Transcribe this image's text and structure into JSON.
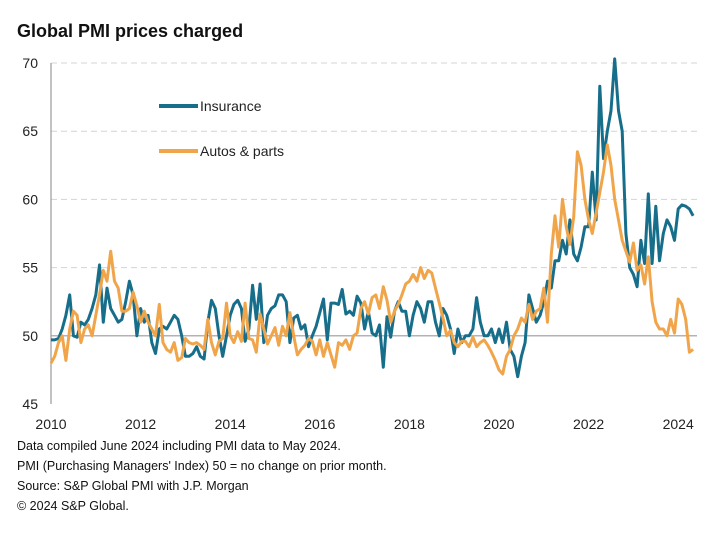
{
  "chart_data": {
    "type": "line",
    "title": "Global PMI prices charged",
    "x_start": "2010-01",
    "x_end": "2024-05",
    "frequency": "monthly",
    "xticks": [
      "2010",
      "2012",
      "2014",
      "2016",
      "2018",
      "2020",
      "2022",
      "2024"
    ],
    "yticks": [
      "45",
      "50",
      "55",
      "60",
      "65",
      "70"
    ],
    "ylim": [
      45,
      70
    ],
    "grid": "horizontal dashed",
    "reference_line": 50,
    "legend": "top-left",
    "series": [
      {
        "name": "Insurance",
        "color": "#176e8a",
        "values": [
          49.7,
          49.7,
          49.8,
          50.5,
          51.5,
          53.0,
          50.0,
          49.9,
          51.0,
          50.8,
          51.2,
          52.0,
          53.0,
          55.2,
          51.0,
          53.5,
          52.0,
          51.5,
          51.0,
          51.2,
          52.5,
          54.0,
          53.0,
          50.0,
          52.0,
          51.0,
          51.5,
          49.5,
          48.7,
          50.5,
          50.7,
          50.5,
          51.0,
          51.5,
          51.2,
          50.0,
          48.5,
          48.5,
          48.7,
          49.2,
          48.5,
          48.3,
          51.0,
          52.6,
          52.0,
          50.0,
          48.5,
          50.0,
          51.5,
          52.3,
          52.6,
          52.0,
          49.6,
          50.5,
          53.7,
          51.2,
          53.8,
          49.5,
          51.5,
          52.0,
          52.2,
          53.0,
          53.0,
          52.5,
          49.5,
          51.3,
          51.5,
          50.5,
          50.8,
          49.2,
          50.0,
          50.7,
          51.7,
          52.7,
          49.7,
          52.4,
          52.4,
          52.3,
          53.4,
          51.6,
          51.8,
          51.5,
          52.9,
          52.4,
          50.5,
          51.8,
          50.2,
          50.0,
          50.8,
          47.7,
          51.4,
          49.9,
          51.8,
          52.5,
          51.8,
          51.8,
          50.0,
          51.5,
          52.5,
          52.0,
          51.0,
          52.5,
          52.5,
          51.0,
          50.0,
          52.0,
          51.5,
          50.5,
          48.7,
          50.5,
          49.5,
          50.0,
          50.0,
          50.5,
          52.8,
          51.0,
          50.0,
          50.0,
          50.5,
          49.5,
          50.5,
          49.5,
          51.0,
          49.0,
          48.5,
          47.0,
          48.5,
          49.5,
          53.0,
          52.0,
          51.0,
          51.5,
          52.5,
          54.0,
          53.5,
          55.5,
          55.5,
          57.0,
          56.0,
          58.5,
          56.0,
          55.5,
          56.5,
          58.0,
          58.0,
          62.0,
          58.5,
          68.3,
          63.0,
          65.0,
          66.5,
          70.5,
          66.5,
          65.0,
          57.5,
          55.0,
          54.5,
          53.6,
          57.0,
          55.3,
          60.4,
          55.3,
          59.5,
          55.5,
          57.5,
          58.5,
          58.0,
          57.0,
          59.3,
          59.6,
          59.5,
          59.3,
          58.8
        ]
      },
      {
        "name": "Autos & parts",
        "color": "#f0a54a",
        "values": [
          48.0,
          48.5,
          49.5,
          50.0,
          48.2,
          50.5,
          51.8,
          51.5,
          49.5,
          50.5,
          50.8,
          50.0,
          51.5,
          53.0,
          54.8,
          54.0,
          56.2,
          54.0,
          53.5,
          51.8,
          51.8,
          52.0,
          53.2,
          52.2,
          51.0,
          51.8,
          51.0,
          50.5,
          50.0,
          52.3,
          49.5,
          49.0,
          48.8,
          49.5,
          48.2,
          48.4,
          49.8,
          49.5,
          49.4,
          49.5,
          49.3,
          49.0,
          51.2,
          49.5,
          48.6,
          49.6,
          49.8,
          52.4,
          50.0,
          49.5,
          50.3,
          49.6,
          52.4,
          49.8,
          49.7,
          48.8,
          51.6,
          50.5,
          49.4,
          50.0,
          50.6,
          49.3,
          50.7,
          50.0,
          51.7,
          50.0,
          48.6,
          49.0,
          49.3,
          49.8,
          49.6,
          48.6,
          49.7,
          48.5,
          49.5,
          48.6,
          47.7,
          49.5,
          49.3,
          49.7,
          49.0,
          50.0,
          50.2,
          52.0,
          52.5,
          51.6,
          52.8,
          53.0,
          52.0,
          53.6,
          52.6,
          51.0,
          51.8,
          52.3,
          53.0,
          53.8,
          54.0,
          54.5,
          54.0,
          55.0,
          54.2,
          54.8,
          54.6,
          53.5,
          52.4,
          51.3,
          50.0,
          50.4,
          49.5,
          49.2,
          49.6,
          49.6,
          49.2,
          49.9,
          49.2,
          49.5,
          49.7,
          49.3,
          48.8,
          48.2,
          47.5,
          47.2,
          48.5,
          49.0,
          50.0,
          50.5,
          51.3,
          51.0,
          52.3,
          51.2,
          51.8,
          52.0,
          53.5,
          51.0,
          56.0,
          58.8,
          56.5,
          60.0,
          58.0,
          56.7,
          58.7,
          63.5,
          62.5,
          60.0,
          58.5,
          57.5,
          59.0,
          60.5,
          62.0,
          64.0,
          62.5,
          60.0,
          58.5,
          57.0,
          56.2,
          55.4,
          56.8,
          54.8,
          55.2,
          53.8,
          55.8,
          52.5,
          51.0,
          50.5,
          50.5,
          50.0,
          51.2,
          50.2,
          52.7,
          52.3,
          51.2,
          48.8,
          49.0
        ]
      }
    ]
  },
  "notes": [
    "Data compiled June 2024 including PMI data to May 2024.",
    "PMI (Purchasing Managers' Index) 50 = no change on prior month.",
    "Source: S&P Global PMI with J.P. Morgan",
    "© 2024 S&P Global."
  ]
}
